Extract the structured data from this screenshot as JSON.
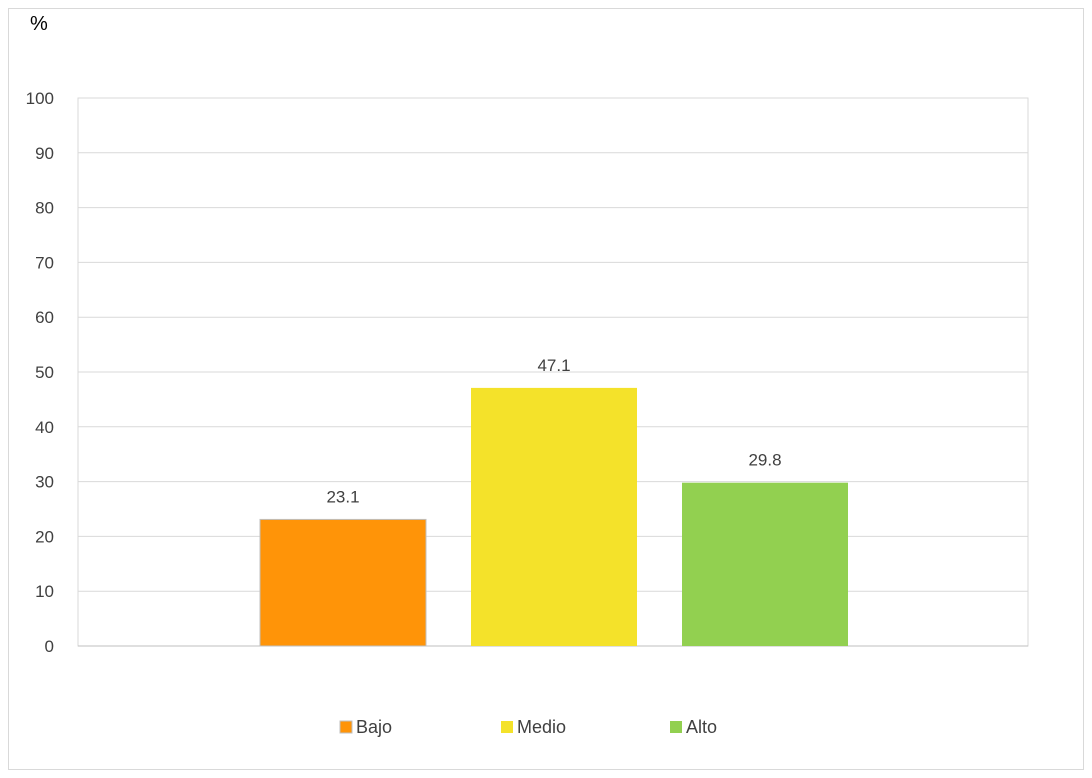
{
  "chart_data": {
    "type": "bar",
    "title": "",
    "xlabel": "",
    "ylabel": "%",
    "categories": [
      "Bajo",
      "Medio",
      "Alto"
    ],
    "values": [
      23.1,
      47.1,
      29.8
    ],
    "data_labels": [
      "23.1",
      "47.1",
      "29.8"
    ],
    "colors": [
      "#ff9408",
      "#f4e22a",
      "#92d050"
    ],
    "ylim": [
      0,
      100
    ],
    "yticks": [
      0,
      10,
      20,
      30,
      40,
      50,
      60,
      70,
      80,
      90,
      100
    ],
    "ytick_labels": [
      "0",
      "10",
      "20",
      "30",
      "40",
      "50",
      "60",
      "70",
      "80",
      "90",
      "100"
    ],
    "grid": true,
    "legend": {
      "position": "bottom",
      "entries": [
        "Bajo",
        "Medio",
        "Alto"
      ]
    }
  }
}
